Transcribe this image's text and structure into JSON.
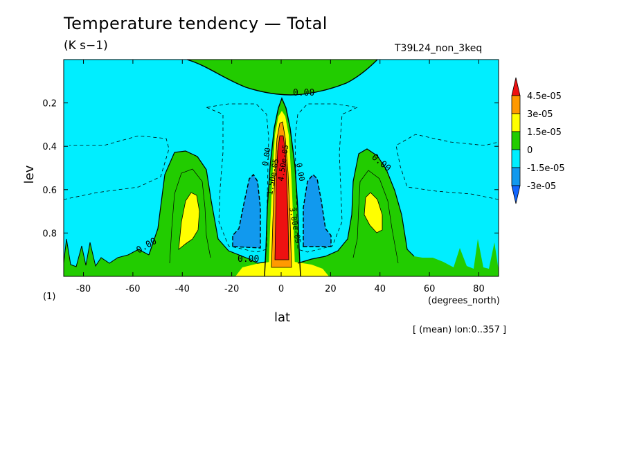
{
  "header": {
    "title": "Temperature tendency — Total",
    "units": "(K s−1)",
    "run_id": "T39L24_non_3keq"
  },
  "footer": {
    "note": "[ (mean) lon:0..357 ]"
  },
  "chart_data": {
    "type": "heatmap",
    "subtype": "filled-contour",
    "title": "Temperature tendency — Total",
    "units": "(K s−1)",
    "xlabel": "lat",
    "x_units": "(degrees_north)",
    "ylabel": "lev",
    "y_units": "(1)",
    "xlim": [
      -88,
      88
    ],
    "ylim": [
      0.0,
      1.0
    ],
    "y_inverted": true,
    "x_ticks": [
      "-80",
      "-60",
      "-40",
      "-20",
      "0",
      "20",
      "40",
      "60",
      "80"
    ],
    "x_tick_values": [
      -80,
      -60,
      -40,
      -20,
      0,
      20,
      40,
      60,
      80
    ],
    "y_ticks": [
      "0.2",
      "0.4",
      "0.6",
      "0.8"
    ],
    "y_tick_values": [
      0.2,
      0.4,
      0.6,
      0.8
    ],
    "colorbar": {
      "labels": [
        "4.5e-05",
        "3e-05",
        "1.5e-05",
        "0",
        "-1.5e-05",
        "-3e-05"
      ],
      "levels": [
        4.5e-05,
        3e-05,
        1.5e-05,
        0,
        -1.5e-05,
        -3e-05
      ],
      "colors": [
        "#ee1111",
        "#ff9900",
        "#ffff00",
        "#22cc00",
        "#00eeff",
        "#1199ee",
        "#1166ff"
      ]
    },
    "contour_labels": [
      "0.00",
      "0.00",
      "0.00",
      "0.00",
      "0.00",
      "1.50e-05",
      "4.50e-05",
      "3.00e-05",
      "0.00"
    ],
    "regions": [
      {
        "name": "polar-upper-positive",
        "level": 0,
        "color": "#22cc00",
        "lat": [
          -38,
          38
        ],
        "lev": [
          0.0,
          0.17
        ]
      },
      {
        "name": "equatorial-heating",
        "level": 4.5e-05,
        "color": "#ee1111",
        "lat": [
          -4,
          4
        ],
        "lev": [
          0.35,
          0.95
        ]
      },
      {
        "name": "equatorial-envelope",
        "level": 1.5e-05,
        "color": "#ffff00",
        "lat": [
          -7,
          7
        ],
        "lev": [
          0.25,
          1.0
        ]
      },
      {
        "name": "sh-midlat-positive",
        "level": 1.5e-05,
        "color": "#ffff00",
        "lat": [
          -40,
          -34
        ],
        "lev": [
          0.6,
          0.85
        ]
      },
      {
        "name": "nh-midlat-positive",
        "level": 1.5e-05,
        "color": "#ffff00",
        "lat": [
          34,
          40
        ],
        "lev": [
          0.6,
          0.8
        ]
      },
      {
        "name": "sh-subtropic-cooling",
        "level": -1.5e-05,
        "color": "#1199ee",
        "lat": [
          -20,
          -10
        ],
        "lev": [
          0.55,
          0.85
        ]
      },
      {
        "name": "nh-subtropic-cooling",
        "level": -1.5e-05,
        "color": "#1199ee",
        "lat": [
          10,
          20
        ],
        "lev": [
          0.55,
          0.85
        ]
      }
    ]
  }
}
